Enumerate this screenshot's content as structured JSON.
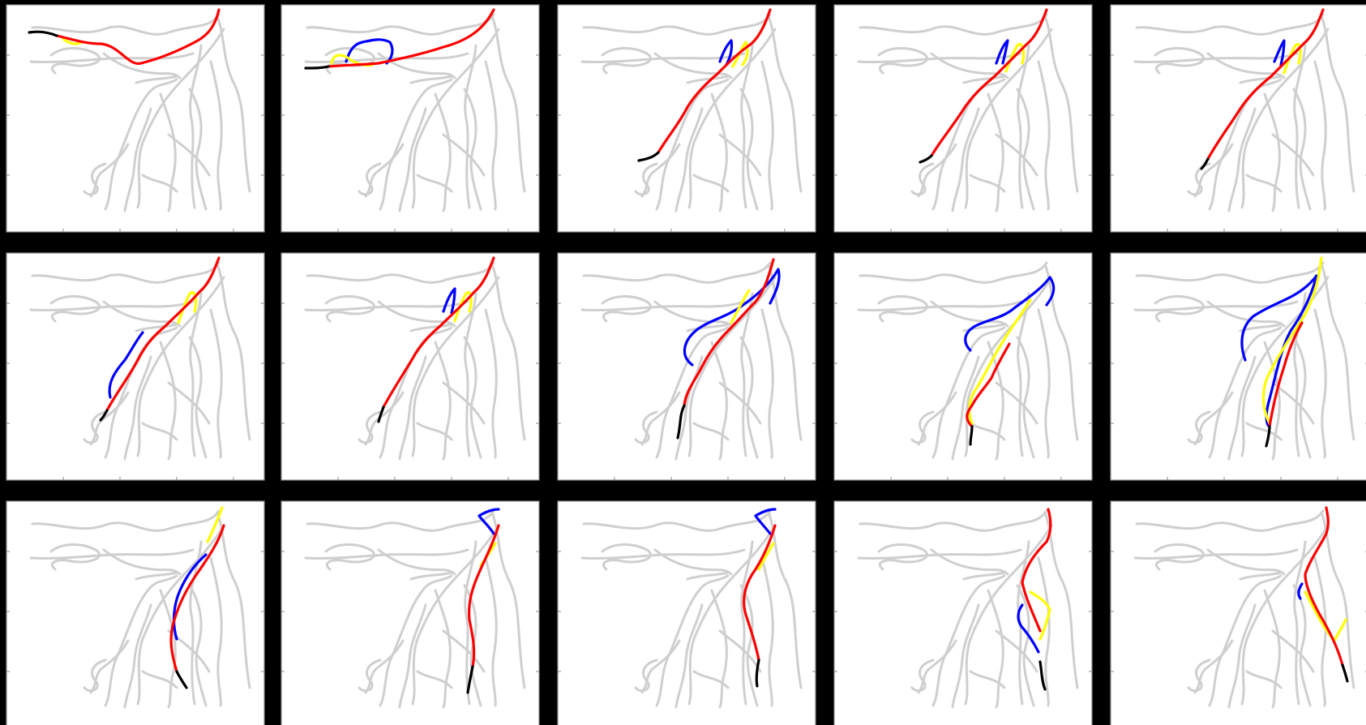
{
  "figure": {
    "rows": 3,
    "cols": 5,
    "colors": {
      "page_background": "#000000",
      "panel_background": "#ffffff",
      "frame": "#8a8a8a",
      "network": "#cfcfcf",
      "route_red": "#ff0000",
      "route_blue": "#0000ff",
      "route_yellow": "#ffff00",
      "route_black": "#000000"
    },
    "tick_labels": "none"
  },
  "panels": [
    {
      "label": "",
      "routes": [
        {
          "color": "route_black",
          "name": "outlet-segment"
        },
        {
          "color": "route_red",
          "name": "primary-path"
        },
        {
          "color": "route_yellow",
          "name": "alternate-path"
        }
      ]
    },
    {
      "label": "",
      "routes": [
        {
          "color": "route_black",
          "name": "outlet-segment"
        },
        {
          "color": "route_red",
          "name": "primary-path"
        },
        {
          "color": "route_blue",
          "name": "alternate-path-a"
        },
        {
          "color": "route_yellow",
          "name": "alternate-path-b"
        }
      ]
    },
    {
      "label": "",
      "routes": [
        {
          "color": "route_black",
          "name": "outlet-segment"
        },
        {
          "color": "route_red",
          "name": "primary-path"
        },
        {
          "color": "route_blue",
          "name": "alternate-path-a"
        },
        {
          "color": "route_yellow",
          "name": "alternate-path-b"
        }
      ]
    },
    {
      "label": "",
      "routes": [
        {
          "color": "route_black",
          "name": "outlet-segment"
        },
        {
          "color": "route_red",
          "name": "primary-path"
        },
        {
          "color": "route_blue",
          "name": "alternate-path-a"
        },
        {
          "color": "route_yellow",
          "name": "alternate-path-b"
        }
      ]
    },
    {
      "label": "",
      "routes": [
        {
          "color": "route_black",
          "name": "outlet-segment"
        },
        {
          "color": "route_red",
          "name": "primary-path"
        },
        {
          "color": "route_blue",
          "name": "alternate-path-a"
        },
        {
          "color": "route_yellow",
          "name": "alternate-path-b"
        }
      ]
    },
    {
      "label": "",
      "routes": [
        {
          "color": "route_black",
          "name": "outlet-segment"
        },
        {
          "color": "route_red",
          "name": "primary-path"
        },
        {
          "color": "route_blue",
          "name": "alternate-path-a"
        },
        {
          "color": "route_yellow",
          "name": "alternate-path-b"
        }
      ]
    },
    {
      "label": "",
      "routes": [
        {
          "color": "route_black",
          "name": "outlet-segment"
        },
        {
          "color": "route_red",
          "name": "primary-path"
        },
        {
          "color": "route_blue",
          "name": "alternate-path-a"
        },
        {
          "color": "route_yellow",
          "name": "alternate-path-b"
        }
      ]
    },
    {
      "label": "",
      "routes": [
        {
          "color": "route_black",
          "name": "outlet-segment"
        },
        {
          "color": "route_red",
          "name": "primary-path"
        },
        {
          "color": "route_blue",
          "name": "alternate-path-a"
        },
        {
          "color": "route_yellow",
          "name": "alternate-path-b"
        }
      ]
    },
    {
      "label": "",
      "routes": [
        {
          "color": "route_black",
          "name": "outlet-segment"
        },
        {
          "color": "route_red",
          "name": "primary-path"
        },
        {
          "color": "route_blue",
          "name": "alternate-path-a"
        },
        {
          "color": "route_yellow",
          "name": "alternate-path-b"
        }
      ]
    },
    {
      "label": "",
      "routes": [
        {
          "color": "route_black",
          "name": "outlet-segment"
        },
        {
          "color": "route_red",
          "name": "primary-path"
        },
        {
          "color": "route_blue",
          "name": "alternate-path-a"
        },
        {
          "color": "route_yellow",
          "name": "alternate-path-b"
        }
      ]
    },
    {
      "label": "",
      "routes": [
        {
          "color": "route_black",
          "name": "outlet-segment"
        },
        {
          "color": "route_red",
          "name": "primary-path"
        },
        {
          "color": "route_blue",
          "name": "alternate-path-a"
        },
        {
          "color": "route_yellow",
          "name": "alternate-path-b"
        }
      ]
    },
    {
      "label": "",
      "routes": [
        {
          "color": "route_black",
          "name": "outlet-segment"
        },
        {
          "color": "route_red",
          "name": "primary-path"
        },
        {
          "color": "route_blue",
          "name": "alternate-path-a"
        },
        {
          "color": "route_yellow",
          "name": "alternate-path-b"
        }
      ]
    },
    {
      "label": "",
      "routes": [
        {
          "color": "route_black",
          "name": "outlet-segment"
        },
        {
          "color": "route_red",
          "name": "primary-path"
        },
        {
          "color": "route_blue",
          "name": "alternate-path-a"
        },
        {
          "color": "route_yellow",
          "name": "alternate-path-b"
        }
      ]
    },
    {
      "label": "",
      "routes": [
        {
          "color": "route_black",
          "name": "outlet-segment"
        },
        {
          "color": "route_red",
          "name": "primary-path"
        },
        {
          "color": "route_blue",
          "name": "alternate-path-a"
        },
        {
          "color": "route_yellow",
          "name": "alternate-path-b"
        }
      ]
    },
    {
      "label": "",
      "routes": [
        {
          "color": "route_black",
          "name": "outlet-segment"
        },
        {
          "color": "route_red",
          "name": "primary-path"
        },
        {
          "color": "route_blue",
          "name": "alternate-path-a"
        },
        {
          "color": "route_yellow",
          "name": "alternate-path-b"
        }
      ]
    }
  ]
}
